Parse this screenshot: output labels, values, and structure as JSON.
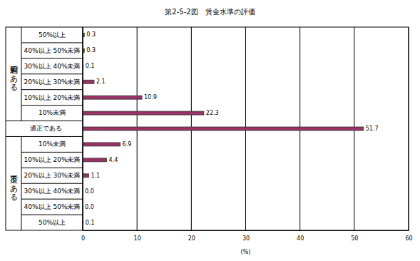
{
  "chart_data": {
    "type": "bar",
    "orientation": "horizontal",
    "title": "第2-5-2図　賃金水準の評価",
    "x_label": "(%)",
    "categories": [
      "50%以上",
      "40%以上 50%未満",
      "30%以上 40%未満",
      "20%以上 30%未満",
      "10%以上 20%未満",
      "10%未満",
      "適正である",
      "10%未満",
      "10%以上 20%未満",
      "20%以上 30%未満",
      "30%以上 40%未満",
      "40%以上 50%未満",
      "50%以上"
    ],
    "values": [
      0.3,
      0.3,
      0.1,
      2.1,
      10.9,
      22.3,
      51.7,
      6.9,
      4.4,
      1.1,
      0.0,
      0.0,
      0.1
    ],
    "value_labels": [
      "0.3",
      "0.3",
      "0.1",
      "2.1",
      "10.9",
      "22.3",
      "51.7",
      "6.9",
      "4.4",
      "1.1",
      "0.0",
      "0.0",
      "0.1"
    ],
    "data_labels": true,
    "groups": [
      {
        "label": "過剰である",
        "from": 0,
        "to": 5
      },
      {
        "label": "不足である",
        "from": 7,
        "to": 12
      }
    ],
    "color": "#993366",
    "xlim": [
      0,
      60
    ],
    "xticks": [
      0,
      10,
      20,
      30,
      40,
      50,
      60
    ],
    "grid": true
  }
}
